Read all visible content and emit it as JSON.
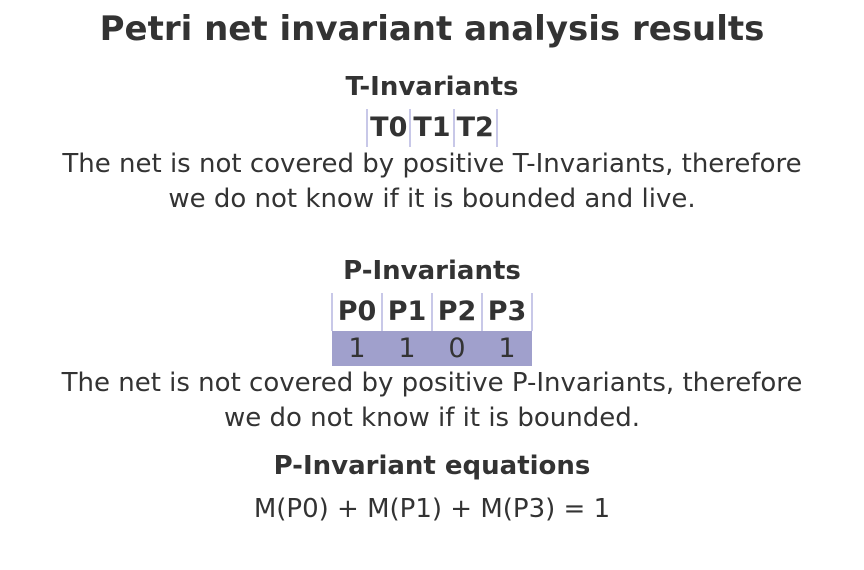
{
  "title": "Petri net invariant analysis results",
  "t_invariants": {
    "heading": "T-Invariants",
    "columns": [
      "T0",
      "T1",
      "T2"
    ],
    "note": [
      "The net is not covered by positive T-Invariants, therefore",
      "we do not know if it is bounded and live."
    ]
  },
  "p_invariants": {
    "heading": "P-Invariants",
    "columns": [
      "P0",
      "P1",
      "P2",
      "P3"
    ],
    "rows": [
      [
        "1",
        "1",
        "0",
        "1"
      ]
    ],
    "note": [
      "The net is not covered by positive P-Invariants, therefore",
      "we do not know if it is bounded."
    ]
  },
  "equations": {
    "heading": "P-Invariant equations",
    "lines": [
      "M(P0) + M(P1) + M(P3) = 1"
    ]
  },
  "colors": {
    "text": "#333333",
    "row_fill": "#a0a0cc",
    "column_border": "#c8c8e8"
  }
}
